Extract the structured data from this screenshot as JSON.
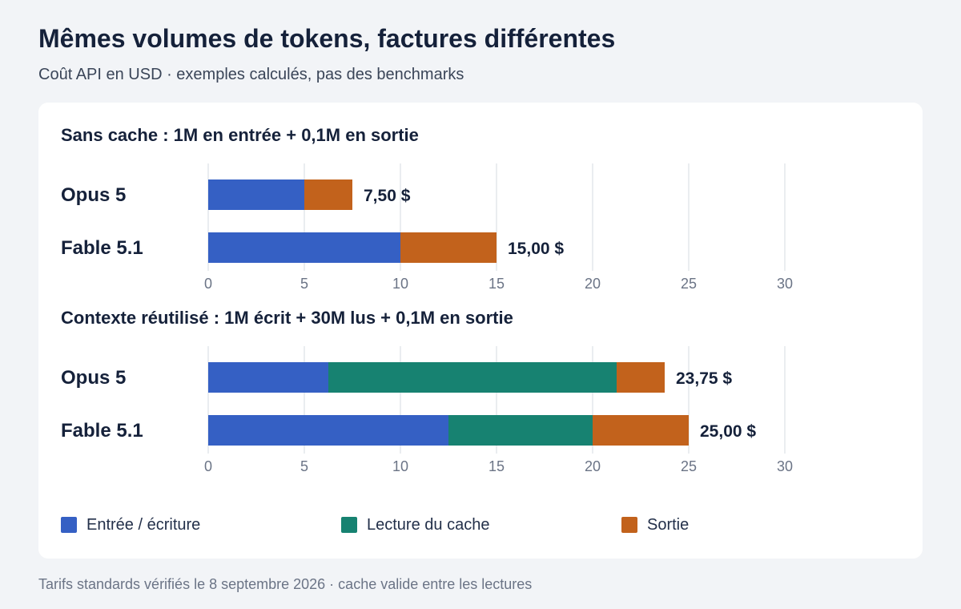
{
  "header": {
    "title": "Mêmes volumes de tokens, factures différentes",
    "subtitle": "Coût API en USD · exemples calculés, pas des benchmarks"
  },
  "footnote": "Tarifs standards vérifiés le 8 septembre 2026 · cache valide entre les lectures",
  "legend": [
    {
      "label": "Entrée / écriture",
      "color": "#3560c4"
    },
    {
      "label": "Lecture du cache",
      "color": "#178271"
    },
    {
      "label": "Sortie",
      "color": "#c2621c"
    }
  ],
  "chart_data": [
    {
      "type": "bar",
      "orientation": "horizontal",
      "stacked": true,
      "title": "Sans cache : 1M en entrée + 0,1M en sortie",
      "categories": [
        "Opus 5",
        "Fable 5.1"
      ],
      "series": [
        {
          "name": "Entrée / écriture",
          "values": [
            5,
            10
          ]
        },
        {
          "name": "Lecture du cache",
          "values": [
            0,
            0
          ]
        },
        {
          "name": "Sortie",
          "values": [
            2.5,
            5
          ]
        }
      ],
      "totals": [
        "7,50 $",
        "15,00 $"
      ],
      "xlim": [
        0,
        30
      ],
      "xticks": [
        0,
        5,
        10,
        15,
        20,
        25,
        30
      ],
      "grid": true
    },
    {
      "type": "bar",
      "orientation": "horizontal",
      "stacked": true,
      "title": "Contexte réutilisé : 1M écrit + 30M lus + 0,1M en sortie",
      "categories": [
        "Opus 5",
        "Fable 5.1"
      ],
      "series": [
        {
          "name": "Entrée / écriture",
          "values": [
            6.25,
            12.5
          ]
        },
        {
          "name": "Lecture du cache",
          "values": [
            15,
            7.5
          ]
        },
        {
          "name": "Sortie",
          "values": [
            2.5,
            5
          ]
        }
      ],
      "totals": [
        "23,75 $",
        "25,00 $"
      ],
      "xlim": [
        0,
        30
      ],
      "xticks": [
        0,
        5,
        10,
        15,
        20,
        25,
        30
      ],
      "grid": true
    }
  ]
}
